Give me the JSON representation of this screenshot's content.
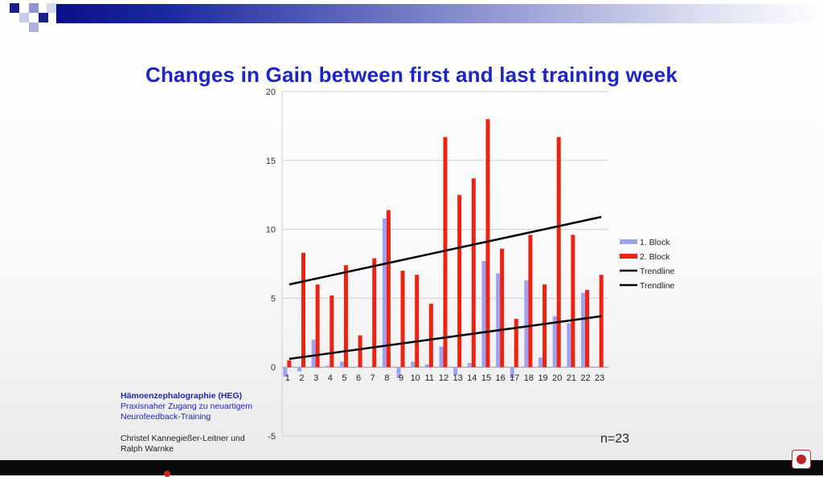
{
  "title": "Changes in Gain between first and last training week",
  "chart_data": {
    "type": "bar",
    "categories": [
      "1",
      "2",
      "3",
      "4",
      "5",
      "6",
      "7",
      "8",
      "9",
      "10",
      "11",
      "12",
      "13",
      "14",
      "15",
      "16",
      "17",
      "18",
      "19",
      "20",
      "21",
      "22",
      "23"
    ],
    "series": [
      {
        "name": "1. Block",
        "color": "#9fa3ee",
        "values": [
          -0.7,
          -0.3,
          2.0,
          0.1,
          0.4,
          0.0,
          0.0,
          10.8,
          -0.8,
          0.4,
          0.2,
          1.5,
          -0.6,
          0.3,
          7.7,
          6.8,
          -0.8,
          6.3,
          0.7,
          3.7,
          3.2,
          5.4,
          0.0
        ]
      },
      {
        "name": "2. Block",
        "color": "#ee2211",
        "values": [
          0.5,
          8.3,
          6.0,
          5.2,
          7.4,
          2.3,
          7.9,
          11.4,
          7.0,
          6.7,
          4.6,
          16.7,
          12.5,
          13.7,
          18.0,
          8.6,
          3.5,
          9.6,
          6.0,
          16.7,
          9.6,
          5.6,
          6.7
        ]
      }
    ],
    "trendlines": [
      {
        "name": "Trendline",
        "color": "#000000",
        "start": 6.0,
        "end": 10.9
      },
      {
        "name": "Trendline",
        "color": "#000000",
        "start": 0.6,
        "end": 3.7
      }
    ],
    "ylim": [
      -5,
      20
    ],
    "yticks": [
      -5,
      0,
      5,
      10,
      15,
      20
    ],
    "grid": true,
    "legend_position": "right"
  },
  "notes": {
    "heg_title": "Hämoenzephalographie (HEG)",
    "heg_sub1": "Praxisnaher Zugang zu neuartigem",
    "heg_sub2": "Neurofeedback-Training",
    "authors1": "Christel Kannegießer-Leitner und",
    "authors2": "Ralph Warnke"
  },
  "n_label": "n=23"
}
